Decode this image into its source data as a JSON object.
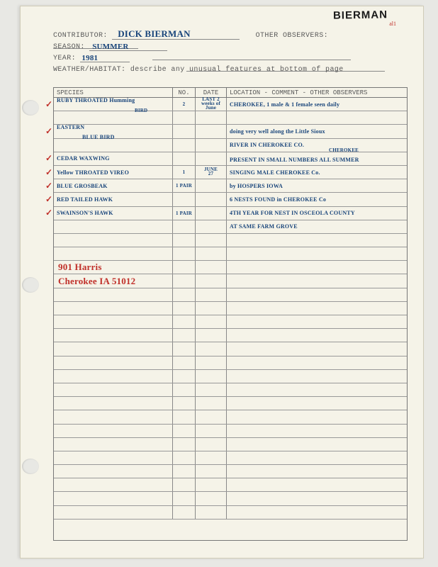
{
  "top_handwritten": "BIERMAN",
  "top_sub": "al1",
  "form": {
    "contributor_label": "CONTRIBUTOR:",
    "contributor_value": "DICK BIERMAN",
    "other_obs_label": "OTHER OBSERVERS:",
    "season_label": "SEASON:",
    "season_value": "SUMMER",
    "year_label": "YEAR:",
    "year_value": "1981",
    "weather_label": "WEATHER/HABITAT: describe any unusual features at bottom of page"
  },
  "columns": {
    "species": "SPECIES",
    "no": "NO.",
    "date": "DATE",
    "location": "LOCATION - COMMENT - OTHER OBSERVERS"
  },
  "rows": [
    {
      "check": true,
      "species": "RUBY THROATED Humming",
      "species2": "BIRD",
      "no": "2",
      "date1": "LAST 2",
      "date2": "weeks of June",
      "loc": "CHEROKEE, 1 male & 1 female seen daily"
    },
    {
      "check": false,
      "species": "",
      "no": "",
      "date": "",
      "loc": ""
    },
    {
      "check": true,
      "species": "EASTERN",
      "species_indent": "BLUE BIRD",
      "no": "",
      "date": "",
      "loc": "doing very well along the Little Sioux"
    },
    {
      "check": false,
      "species": "",
      "no": "",
      "date": "",
      "loc": "RIVER IN CHEROKEE CO."
    },
    {
      "check": true,
      "species": "CEDAR WAXWING",
      "no": "",
      "date": "",
      "loc": "PRESENT IN SMALL NUMBERS ALL SUMMER",
      "loc_sup": "CHEROKEE"
    },
    {
      "check": true,
      "species": "Yellow THROATED VIREO",
      "no": "1",
      "date1": "JUNE",
      "date2": "27",
      "loc": "SINGING MALE CHEROKEE Co."
    },
    {
      "check": true,
      "species": "BLUE GROSBEAK",
      "no": "1 PAIR",
      "date": "",
      "loc": "by HOSPERS  IOWA"
    },
    {
      "check": true,
      "species": "RED TAILED HAWK",
      "no": "",
      "date": "",
      "loc": "6 NESTS FOUND in CHEROKEE Co"
    },
    {
      "check": true,
      "species": "SWAINSON'S HAWK",
      "no": "1 PAIR",
      "date": "",
      "loc": "4TH YEAR FOR NEST IN OSCEOLA COUNTY"
    },
    {
      "check": false,
      "species": "",
      "no": "",
      "date": "",
      "loc": "AT SAME FARM GROVE"
    },
    {
      "check": false,
      "species": "",
      "no": "",
      "date": "",
      "loc": ""
    },
    {
      "check": false,
      "species": "",
      "no": "",
      "date": "",
      "loc": ""
    },
    {
      "check": false,
      "red": "901 Harris",
      "no": "",
      "date": "",
      "loc": ""
    },
    {
      "check": false,
      "red": "Cherokee IA 51012",
      "no": "",
      "date": "",
      "loc": ""
    },
    {
      "check": false
    },
    {
      "check": false
    },
    {
      "check": false
    },
    {
      "check": false
    },
    {
      "check": false
    },
    {
      "check": false
    },
    {
      "check": false
    },
    {
      "check": false
    },
    {
      "check": false
    },
    {
      "check": false
    },
    {
      "check": false
    },
    {
      "check": false
    },
    {
      "check": false
    },
    {
      "check": false
    },
    {
      "check": false
    },
    {
      "check": false
    },
    {
      "check": false
    }
  ]
}
